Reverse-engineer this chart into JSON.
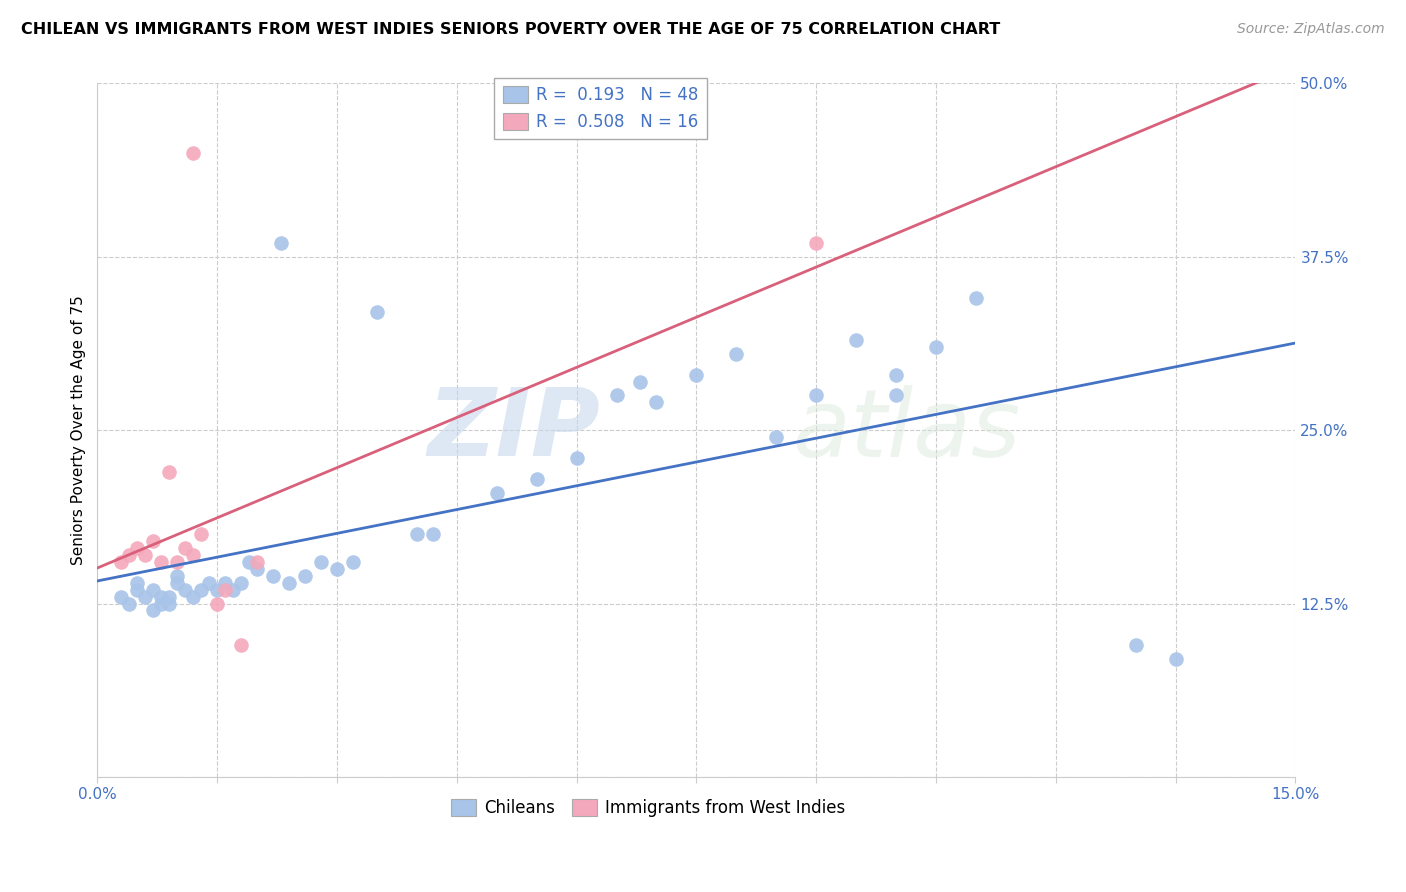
{
  "title": "CHILEAN VS IMMIGRANTS FROM WEST INDIES SENIORS POVERTY OVER THE AGE OF 75 CORRELATION CHART",
  "source": "Source: ZipAtlas.com",
  "ylabel": "Seniors Poverty Over the Age of 75",
  "xlim": [
    0.0,
    0.15
  ],
  "ylim": [
    0.0,
    0.5
  ],
  "xticks": [
    0.0,
    0.015,
    0.03,
    0.045,
    0.06,
    0.075,
    0.09,
    0.105,
    0.12,
    0.135,
    0.15
  ],
  "yticks": [
    0.0,
    0.125,
    0.25,
    0.375,
    0.5
  ],
  "xticklabels": [
    "0.0%",
    "",
    "",
    "",
    "",
    "",
    "",
    "",
    "",
    "",
    "15.0%"
  ],
  "yticklabels": [
    "",
    "12.5%",
    "25.0%",
    "37.5%",
    "50.0%"
  ],
  "blue_R": "0.193",
  "blue_N": "48",
  "pink_R": "0.508",
  "pink_N": "16",
  "blue_color": "#a8c4e8",
  "pink_color": "#f4a8bc",
  "blue_line_color": "#4472c4",
  "pink_line_color": "#d9607a",
  "blue_scatter": [
    [
      0.003,
      0.13
    ],
    [
      0.004,
      0.125
    ],
    [
      0.005,
      0.135
    ],
    [
      0.005,
      0.14
    ],
    [
      0.006,
      0.13
    ],
    [
      0.007,
      0.12
    ],
    [
      0.007,
      0.135
    ],
    [
      0.008,
      0.125
    ],
    [
      0.008,
      0.13
    ],
    [
      0.009,
      0.125
    ],
    [
      0.009,
      0.13
    ],
    [
      0.01,
      0.14
    ],
    [
      0.01,
      0.145
    ],
    [
      0.011,
      0.135
    ],
    [
      0.012,
      0.13
    ],
    [
      0.013,
      0.135
    ],
    [
      0.014,
      0.14
    ],
    [
      0.015,
      0.135
    ],
    [
      0.016,
      0.14
    ],
    [
      0.017,
      0.135
    ],
    [
      0.018,
      0.14
    ],
    [
      0.019,
      0.155
    ],
    [
      0.02,
      0.15
    ],
    [
      0.022,
      0.145
    ],
    [
      0.024,
      0.14
    ],
    [
      0.026,
      0.145
    ],
    [
      0.028,
      0.155
    ],
    [
      0.03,
      0.15
    ],
    [
      0.032,
      0.155
    ],
    [
      0.04,
      0.175
    ],
    [
      0.042,
      0.175
    ],
    [
      0.05,
      0.205
    ],
    [
      0.055,
      0.215
    ],
    [
      0.06,
      0.23
    ],
    [
      0.065,
      0.275
    ],
    [
      0.068,
      0.285
    ],
    [
      0.07,
      0.27
    ],
    [
      0.075,
      0.29
    ],
    [
      0.08,
      0.305
    ],
    [
      0.085,
      0.245
    ],
    [
      0.09,
      0.275
    ],
    [
      0.095,
      0.315
    ],
    [
      0.1,
      0.29
    ],
    [
      0.1,
      0.275
    ],
    [
      0.105,
      0.31
    ],
    [
      0.11,
      0.345
    ],
    [
      0.13,
      0.095
    ],
    [
      0.135,
      0.085
    ]
  ],
  "pink_scatter": [
    [
      0.003,
      0.155
    ],
    [
      0.004,
      0.16
    ],
    [
      0.005,
      0.165
    ],
    [
      0.006,
      0.16
    ],
    [
      0.007,
      0.17
    ],
    [
      0.008,
      0.155
    ],
    [
      0.009,
      0.22
    ],
    [
      0.01,
      0.155
    ],
    [
      0.011,
      0.165
    ],
    [
      0.012,
      0.16
    ],
    [
      0.013,
      0.175
    ],
    [
      0.015,
      0.125
    ],
    [
      0.016,
      0.135
    ],
    [
      0.018,
      0.095
    ],
    [
      0.02,
      0.155
    ],
    [
      0.09,
      0.385
    ]
  ],
  "pink_outlier": [
    0.012,
    0.45
  ],
  "blue_outlier1": [
    0.023,
    0.385
  ],
  "blue_outlier2": [
    0.035,
    0.335
  ],
  "watermark_zip": "ZIP",
  "watermark_atlas": "atlas"
}
